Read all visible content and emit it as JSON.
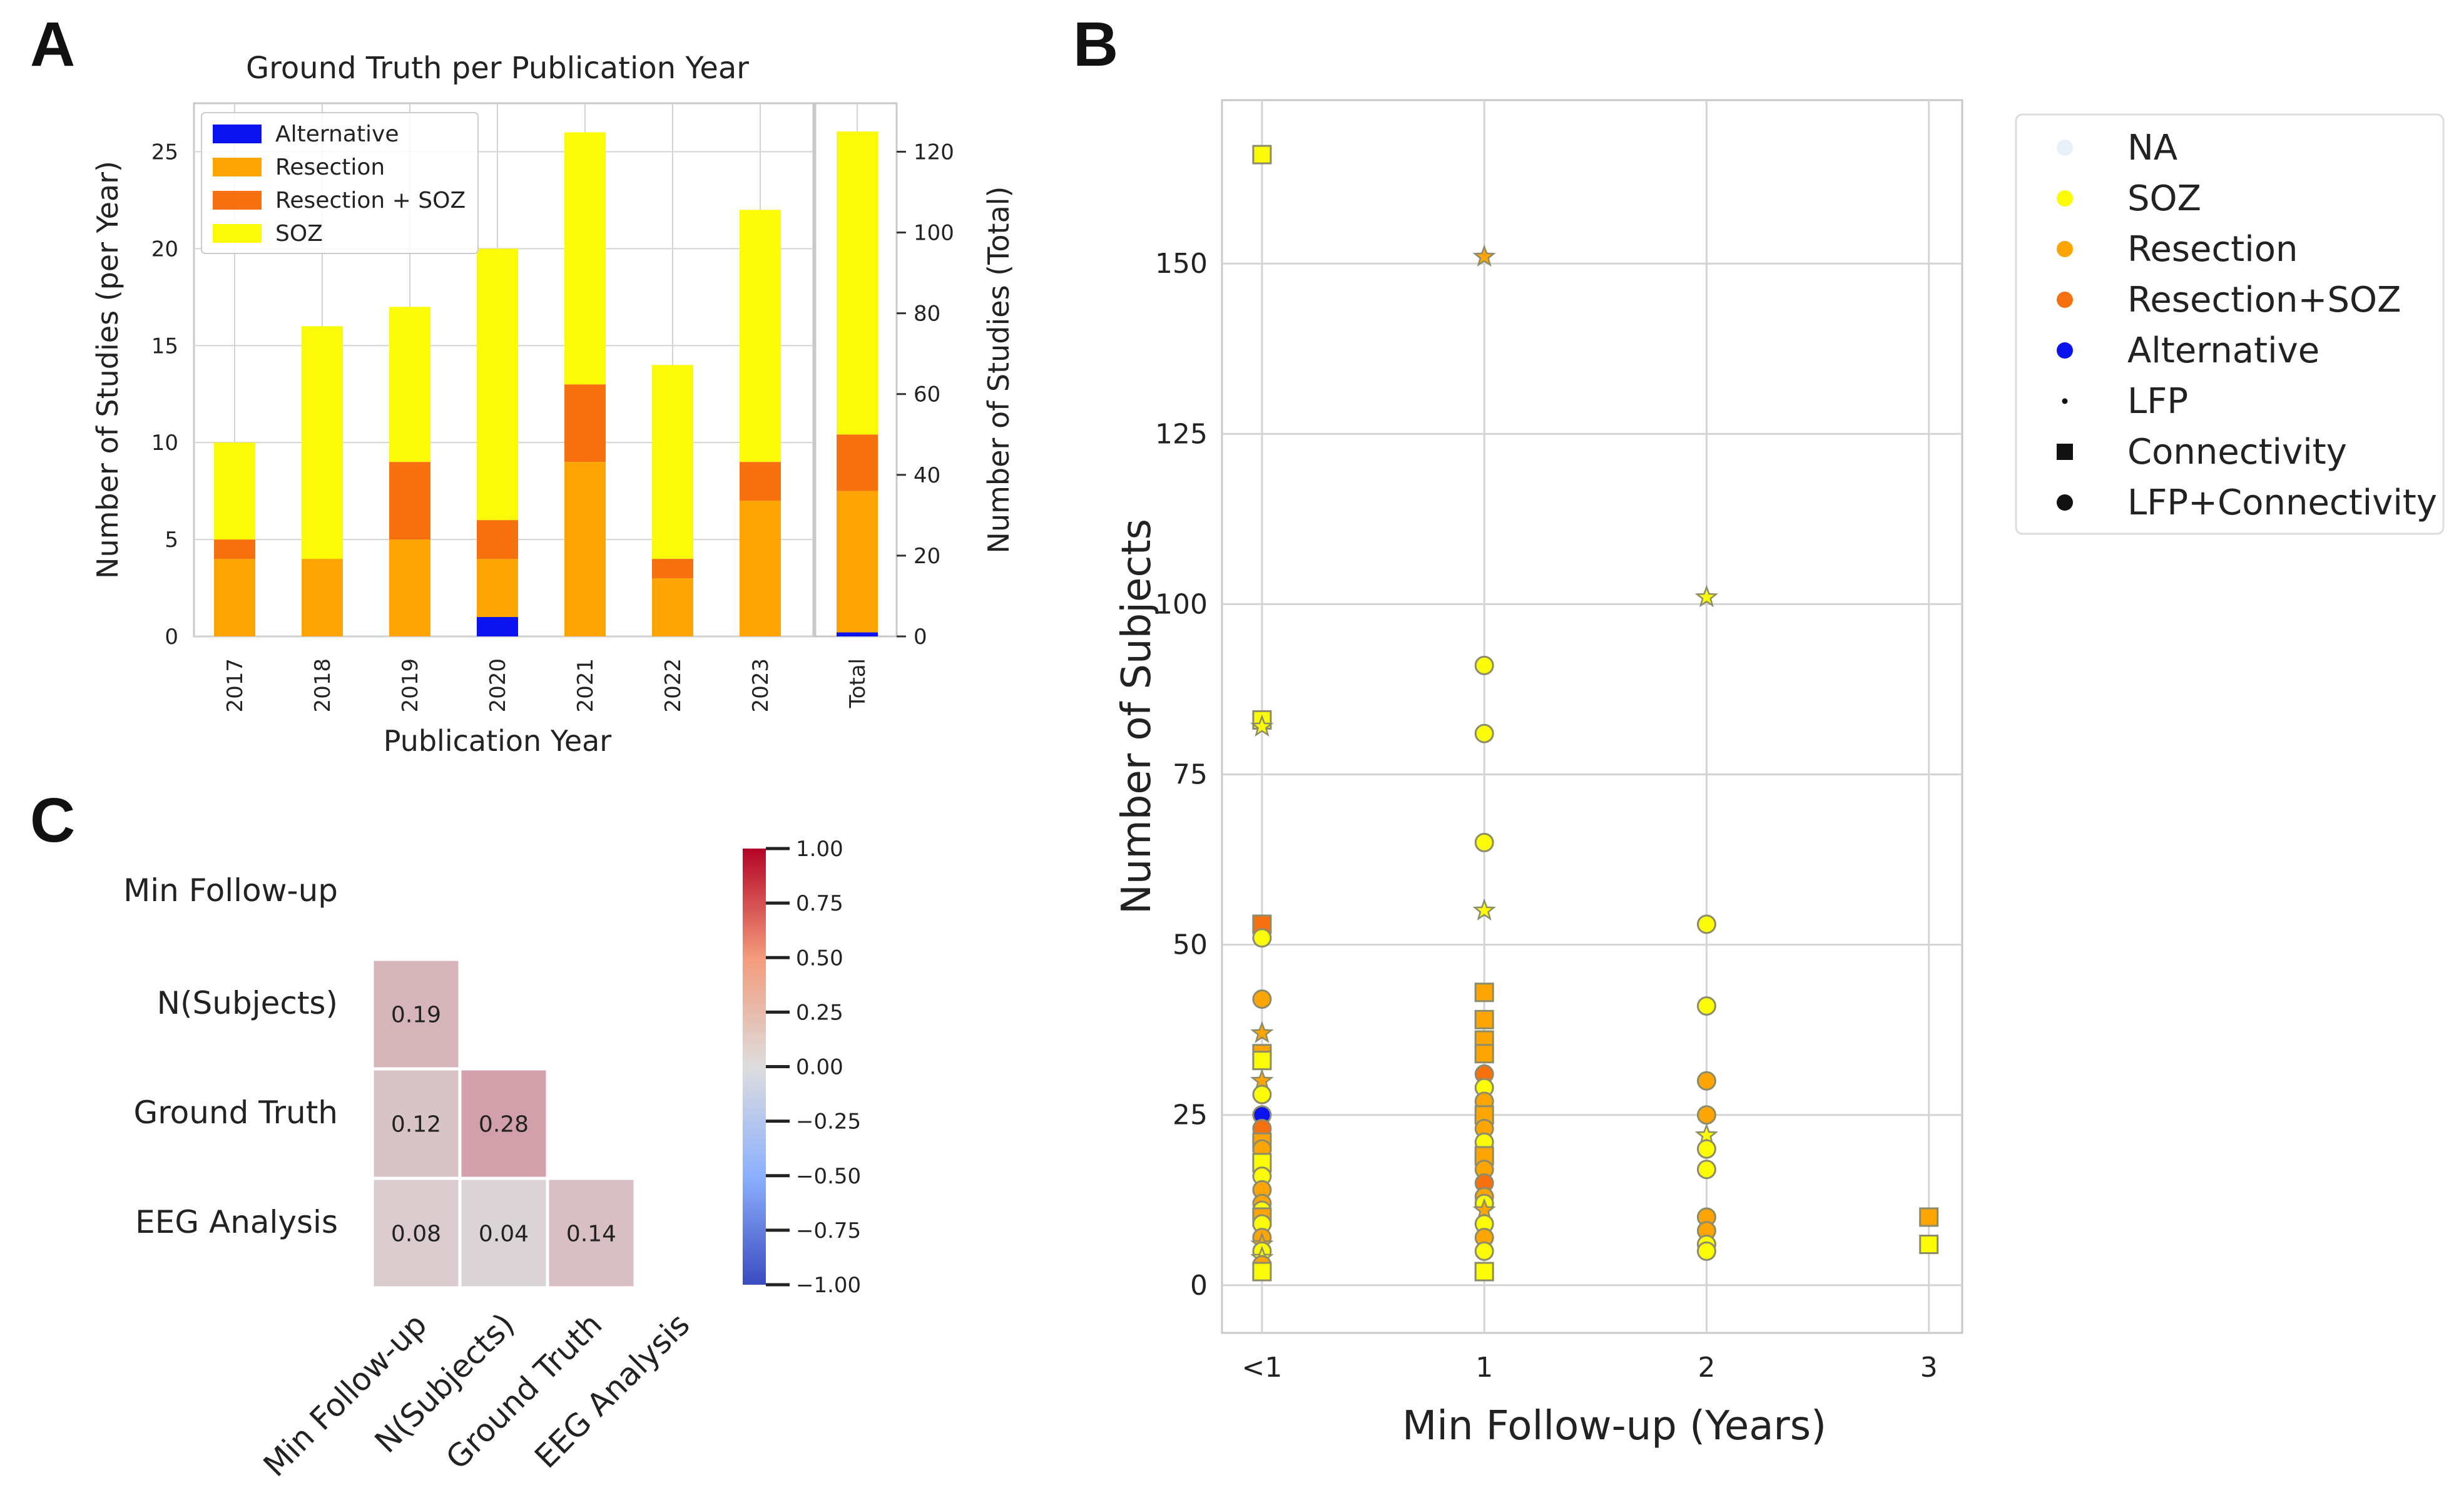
{
  "panel_labels": [
    "A",
    "B",
    "C"
  ],
  "colors": {
    "Alternative": "#0a12ee",
    "Resection": "#fca504",
    "Resection + SOZ": "#f6700f",
    "SOZ": "#fbfb08",
    "NA": "#e8f0fa",
    "grid": "#d4d4d4",
    "marker_edge": "#8c8c6a",
    "cbar_low": "#3b4cc0",
    "cbar_mid": "#dddddd",
    "cbar_high": "#b40426"
  },
  "chart_data": [
    {
      "type": "bar",
      "stacked": true,
      "title": "Ground Truth per Publication Year",
      "xlabel": "Publication Year",
      "ylabel": "Number of Studies (per Year)",
      "ylim": [
        0,
        27.5
      ],
      "yticks": [
        0,
        5,
        10,
        15,
        20,
        25
      ],
      "categories": [
        "2017",
        "2018",
        "2019",
        "2020",
        "2021",
        "2022",
        "2023"
      ],
      "series": [
        {
          "name": "Alternative",
          "values": [
            0,
            0,
            0,
            1,
            0,
            0,
            0
          ]
        },
        {
          "name": "Resection",
          "values": [
            4,
            4,
            5,
            3,
            9,
            3,
            7
          ]
        },
        {
          "name": "Resection + SOZ",
          "values": [
            1,
            0,
            4,
            2,
            4,
            1,
            2
          ]
        },
        {
          "name": "SOZ",
          "values": [
            5,
            12,
            8,
            14,
            13,
            10,
            13
          ]
        }
      ],
      "legend": [
        "Alternative",
        "Resection",
        "Resection + SOZ",
        "SOZ"
      ],
      "legend_position": "top-left",
      "total": {
        "category": "Total",
        "ylabel": "Number of Studies (Total)",
        "ylim": [
          0,
          132
        ],
        "yticks": [
          0,
          20,
          40,
          60,
          80,
          100,
          120
        ],
        "values": {
          "Alternative": 1,
          "Resection": 35,
          "Resection + SOZ": 14,
          "SOZ": 75
        }
      }
    },
    {
      "type": "scatter",
      "xlabel": "Min Follow-up (Years)",
      "ylabel": "Number of Subjects",
      "xticks": [
        "<1",
        "1",
        "2",
        "3"
      ],
      "xlim": [
        -0.18,
        3.15
      ],
      "ylim": [
        -7,
        174
      ],
      "yticks": [
        0,
        25,
        50,
        75,
        100,
        125,
        150
      ],
      "grid": true,
      "legend_position": "outside-right",
      "legend": [
        {
          "label": "NA",
          "kind": "color"
        },
        {
          "label": "SOZ",
          "kind": "color"
        },
        {
          "label": "Resection",
          "kind": "color"
        },
        {
          "label": "Resection+SOZ",
          "kind": "color"
        },
        {
          "label": "Alternative",
          "kind": "color"
        },
        {
          "label": "LFP",
          "kind": "shape"
        },
        {
          "label": "Connectivity",
          "kind": "shape"
        },
        {
          "label": "LFP+Connectivity",
          "kind": "shape"
        }
      ],
      "points": [
        {
          "x": 0,
          "y": 166,
          "gt": "SOZ",
          "m": "square"
        },
        {
          "x": 0,
          "y": 83,
          "gt": "SOZ",
          "m": "square"
        },
        {
          "x": 0,
          "y": 82,
          "gt": "SOZ",
          "m": "star"
        },
        {
          "x": 0,
          "y": 53,
          "gt": "Resection + SOZ",
          "m": "square"
        },
        {
          "x": 0,
          "y": 51,
          "gt": "SOZ",
          "m": "circle"
        },
        {
          "x": 0,
          "y": 42,
          "gt": "Resection",
          "m": "circle"
        },
        {
          "x": 0,
          "y": 37,
          "gt": "Resection",
          "m": "star"
        },
        {
          "x": 0,
          "y": 34,
          "gt": "Resection",
          "m": "square"
        },
        {
          "x": 0,
          "y": 33,
          "gt": "SOZ",
          "m": "square"
        },
        {
          "x": 0,
          "y": 30,
          "gt": "Resection",
          "m": "star"
        },
        {
          "x": 0,
          "y": 28,
          "gt": "SOZ",
          "m": "circle"
        },
        {
          "x": 0,
          "y": 25,
          "gt": "Alternative",
          "m": "circle"
        },
        {
          "x": 0,
          "y": 23,
          "gt": "Resection + SOZ",
          "m": "circle"
        },
        {
          "x": 0,
          "y": 21,
          "gt": "Resection",
          "m": "square"
        },
        {
          "x": 0,
          "y": 20,
          "gt": "Resection",
          "m": "circle"
        },
        {
          "x": 0,
          "y": 18,
          "gt": "SOZ",
          "m": "square"
        },
        {
          "x": 0,
          "y": 16,
          "gt": "SOZ",
          "m": "circle"
        },
        {
          "x": 0,
          "y": 14,
          "gt": "Resection",
          "m": "circle"
        },
        {
          "x": 0,
          "y": 12,
          "gt": "Resection",
          "m": "circle"
        },
        {
          "x": 0,
          "y": 11,
          "gt": "SOZ",
          "m": "circle"
        },
        {
          "x": 0,
          "y": 10,
          "gt": "Resection",
          "m": "square"
        },
        {
          "x": 0,
          "y": 9,
          "gt": "SOZ",
          "m": "circle"
        },
        {
          "x": 0,
          "y": 7,
          "gt": "Resection",
          "m": "circle"
        },
        {
          "x": 0,
          "y": 6,
          "gt": "Resection",
          "m": "star"
        },
        {
          "x": 0,
          "y": 5,
          "gt": "SOZ",
          "m": "circle"
        },
        {
          "x": 0,
          "y": 4,
          "gt": "SOZ",
          "m": "star"
        },
        {
          "x": 0,
          "y": 3,
          "gt": "Resection",
          "m": "circle"
        },
        {
          "x": 0,
          "y": 2,
          "gt": "SOZ",
          "m": "square"
        },
        {
          "x": 1,
          "y": 151,
          "gt": "Resection",
          "m": "star"
        },
        {
          "x": 1,
          "y": 91,
          "gt": "SOZ",
          "m": "circle"
        },
        {
          "x": 1,
          "y": 81,
          "gt": "SOZ",
          "m": "circle"
        },
        {
          "x": 1,
          "y": 65,
          "gt": "SOZ",
          "m": "circle"
        },
        {
          "x": 1,
          "y": 55,
          "gt": "SOZ",
          "m": "star"
        },
        {
          "x": 1,
          "y": 43,
          "gt": "Resection",
          "m": "square"
        },
        {
          "x": 1,
          "y": 39,
          "gt": "Resection",
          "m": "square"
        },
        {
          "x": 1,
          "y": 36,
          "gt": "Resection",
          "m": "square"
        },
        {
          "x": 1,
          "y": 34,
          "gt": "Resection",
          "m": "square"
        },
        {
          "x": 1,
          "y": 31,
          "gt": "Resection + SOZ",
          "m": "circle"
        },
        {
          "x": 1,
          "y": 29,
          "gt": "SOZ",
          "m": "circle"
        },
        {
          "x": 1,
          "y": 27,
          "gt": "Resection",
          "m": "circle"
        },
        {
          "x": 1,
          "y": 25,
          "gt": "Resection",
          "m": "square"
        },
        {
          "x": 1,
          "y": 23,
          "gt": "Resection",
          "m": "circle"
        },
        {
          "x": 1,
          "y": 21,
          "gt": "SOZ",
          "m": "circle"
        },
        {
          "x": 1,
          "y": 19,
          "gt": "Resection",
          "m": "square"
        },
        {
          "x": 1,
          "y": 17,
          "gt": "Resection",
          "m": "circle"
        },
        {
          "x": 1,
          "y": 15,
          "gt": "Resection + SOZ",
          "m": "circle"
        },
        {
          "x": 1,
          "y": 13,
          "gt": "Resection",
          "m": "circle"
        },
        {
          "x": 1,
          "y": 12,
          "gt": "SOZ",
          "m": "circle"
        },
        {
          "x": 1,
          "y": 11,
          "gt": "Resection",
          "m": "star"
        },
        {
          "x": 1,
          "y": 9,
          "gt": "SOZ",
          "m": "circle"
        },
        {
          "x": 1,
          "y": 7,
          "gt": "Resection",
          "m": "circle"
        },
        {
          "x": 1,
          "y": 5,
          "gt": "SOZ",
          "m": "circle"
        },
        {
          "x": 1,
          "y": 2,
          "gt": "SOZ",
          "m": "square"
        },
        {
          "x": 2,
          "y": 101,
          "gt": "SOZ",
          "m": "star"
        },
        {
          "x": 2,
          "y": 53,
          "gt": "SOZ",
          "m": "circle"
        },
        {
          "x": 2,
          "y": 41,
          "gt": "SOZ",
          "m": "circle"
        },
        {
          "x": 2,
          "y": 30,
          "gt": "Resection",
          "m": "circle"
        },
        {
          "x": 2,
          "y": 25,
          "gt": "Resection",
          "m": "circle"
        },
        {
          "x": 2,
          "y": 22,
          "gt": "SOZ",
          "m": "star"
        },
        {
          "x": 2,
          "y": 20,
          "gt": "SOZ",
          "m": "circle"
        },
        {
          "x": 2,
          "y": 17,
          "gt": "SOZ",
          "m": "circle"
        },
        {
          "x": 2,
          "y": 10,
          "gt": "Resection",
          "m": "circle"
        },
        {
          "x": 2,
          "y": 8,
          "gt": "Resection",
          "m": "circle"
        },
        {
          "x": 2,
          "y": 6,
          "gt": "SOZ",
          "m": "circle"
        },
        {
          "x": 2,
          "y": 5,
          "gt": "SOZ",
          "m": "circle"
        },
        {
          "x": 3,
          "y": 10,
          "gt": "Resection",
          "m": "square"
        },
        {
          "x": 3,
          "y": 6,
          "gt": "SOZ",
          "m": "square"
        }
      ]
    },
    {
      "type": "heatmap",
      "variant": "lower-triangle correlation",
      "rows": [
        "Min Follow-up",
        "N(Subjects)",
        "Ground Truth",
        "EEG Analysis"
      ],
      "cols": [
        "Min Follow-up",
        "N(Subjects)",
        "Ground Truth",
        "EEG Analysis"
      ],
      "cells": [
        {
          "row": 1,
          "col": 0,
          "value": 0.19,
          "label": "0.19"
        },
        {
          "row": 2,
          "col": 0,
          "value": 0.12,
          "label": "0.12"
        },
        {
          "row": 2,
          "col": 1,
          "value": 0.28,
          "label": "0.28"
        },
        {
          "row": 3,
          "col": 0,
          "value": 0.08,
          "label": "0.08"
        },
        {
          "row": 3,
          "col": 1,
          "value": 0.04,
          "label": "0.04"
        },
        {
          "row": 3,
          "col": 2,
          "value": 0.14,
          "label": "0.14"
        }
      ],
      "colorbar": {
        "vmin": -1.0,
        "vmax": 1.0,
        "ticks": [
          1.0,
          0.75,
          0.5,
          0.25,
          0.0,
          -0.25,
          -0.5,
          -0.75,
          -1.0
        ],
        "tick_labels": [
          "1.00",
          "0.75",
          "0.50",
          "0.25",
          "0.00",
          "−0.25",
          "−0.50",
          "−0.75",
          "−1.00"
        ]
      }
    }
  ]
}
